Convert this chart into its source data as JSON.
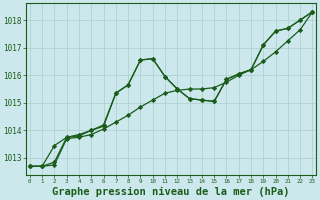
{
  "background_color": "#cce8ec",
  "grid_color": "#aacccc",
  "line_color": "#1a5c1a",
  "xlabel": "Graphe pression niveau de la mer (hPa)",
  "xlabel_fontsize": 7.5,
  "ylabel_ticks": [
    1013,
    1014,
    1015,
    1016,
    1017,
    1018
  ],
  "xtick_labels": [
    "0",
    "1",
    "2",
    "3",
    "4",
    "5",
    "6",
    "7",
    "8",
    "9",
    "10",
    "11",
    "12",
    "13",
    "14",
    "15",
    "16",
    "17",
    "18",
    "19",
    "20",
    "21",
    "22",
    "23"
  ],
  "ylim": [
    1012.4,
    1018.6
  ],
  "xlim": [
    -0.3,
    23.3
  ],
  "sA": [
    1012.7,
    1012.7,
    1012.75,
    1013.7,
    1013.75,
    1013.85,
    1014.05,
    1014.3,
    1014.55,
    1014.85,
    1015.1,
    1015.35,
    1015.45,
    1015.5,
    1015.5,
    1015.55,
    1015.75,
    1016.0,
    1016.2,
    1016.5,
    1016.85,
    1017.25,
    1017.65,
    1018.3
  ],
  "sB": [
    1012.7,
    1012.7,
    1012.85,
    1013.75,
    1013.8,
    1014.0,
    1014.15,
    1015.35,
    1015.65,
    1016.55,
    1016.6,
    1015.95,
    1015.5,
    1015.15,
    1015.1,
    1015.05,
    1015.85,
    1016.05,
    1016.2,
    1017.1,
    1017.6,
    1017.7,
    1018.0,
    1018.3
  ],
  "sC": [
    1012.7,
    1012.7,
    1013.45,
    1013.75,
    1013.85,
    1014.0,
    1014.2,
    1015.35,
    1015.65,
    1016.55,
    1016.6,
    1015.95,
    1015.5,
    1015.15,
    1015.1,
    1015.05,
    1015.85,
    1016.05,
    1016.2,
    1017.1,
    1017.6,
    1017.7,
    1018.0,
    1018.3
  ]
}
